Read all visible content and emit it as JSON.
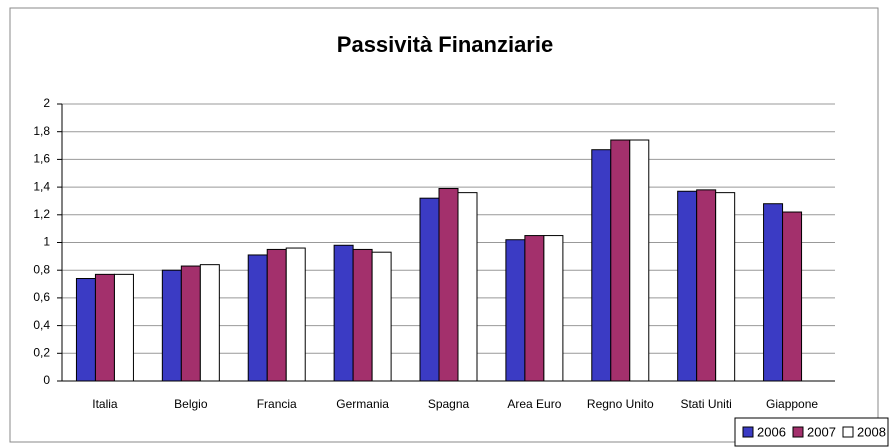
{
  "chart_data": {
    "type": "bar",
    "title": "Passività Finanziarie",
    "categories": [
      "Italia",
      "Belgio",
      "Francia",
      "Germania",
      "Spagna",
      "Area Euro",
      "Regno Unito",
      "Stati Uniti",
      "Giappone"
    ],
    "series": [
      {
        "name": "2006",
        "color": "#3b3bc4",
        "values": [
          0.74,
          0.8,
          0.91,
          0.98,
          1.32,
          1.02,
          1.67,
          1.37,
          1.28
        ]
      },
      {
        "name": "2007",
        "color": "#a3306c",
        "values": [
          0.77,
          0.83,
          0.95,
          0.95,
          1.39,
          1.05,
          1.74,
          1.38,
          1.22
        ]
      },
      {
        "name": "2008",
        "color": "#ffffff",
        "values": [
          0.77,
          0.84,
          0.96,
          0.93,
          1.36,
          1.05,
          1.74,
          1.36,
          null
        ]
      }
    ],
    "ylim": [
      0,
      2
    ],
    "yticks": [
      0,
      {
        "value": 0.2,
        "label": "0,2"
      },
      {
        "value": 0.4,
        "label": "0,4"
      },
      {
        "value": 0.6,
        "label": "0,6"
      },
      {
        "value": 0.8,
        "label": "0,8"
      },
      1,
      {
        "value": 1.2,
        "label": "1,2"
      },
      {
        "value": 1.4,
        "label": "1,4"
      },
      {
        "value": 1.6,
        "label": "1,6"
      },
      {
        "value": 1.8,
        "label": "1,8"
      },
      2
    ],
    "grid": true,
    "legend": "bottom-right"
  }
}
